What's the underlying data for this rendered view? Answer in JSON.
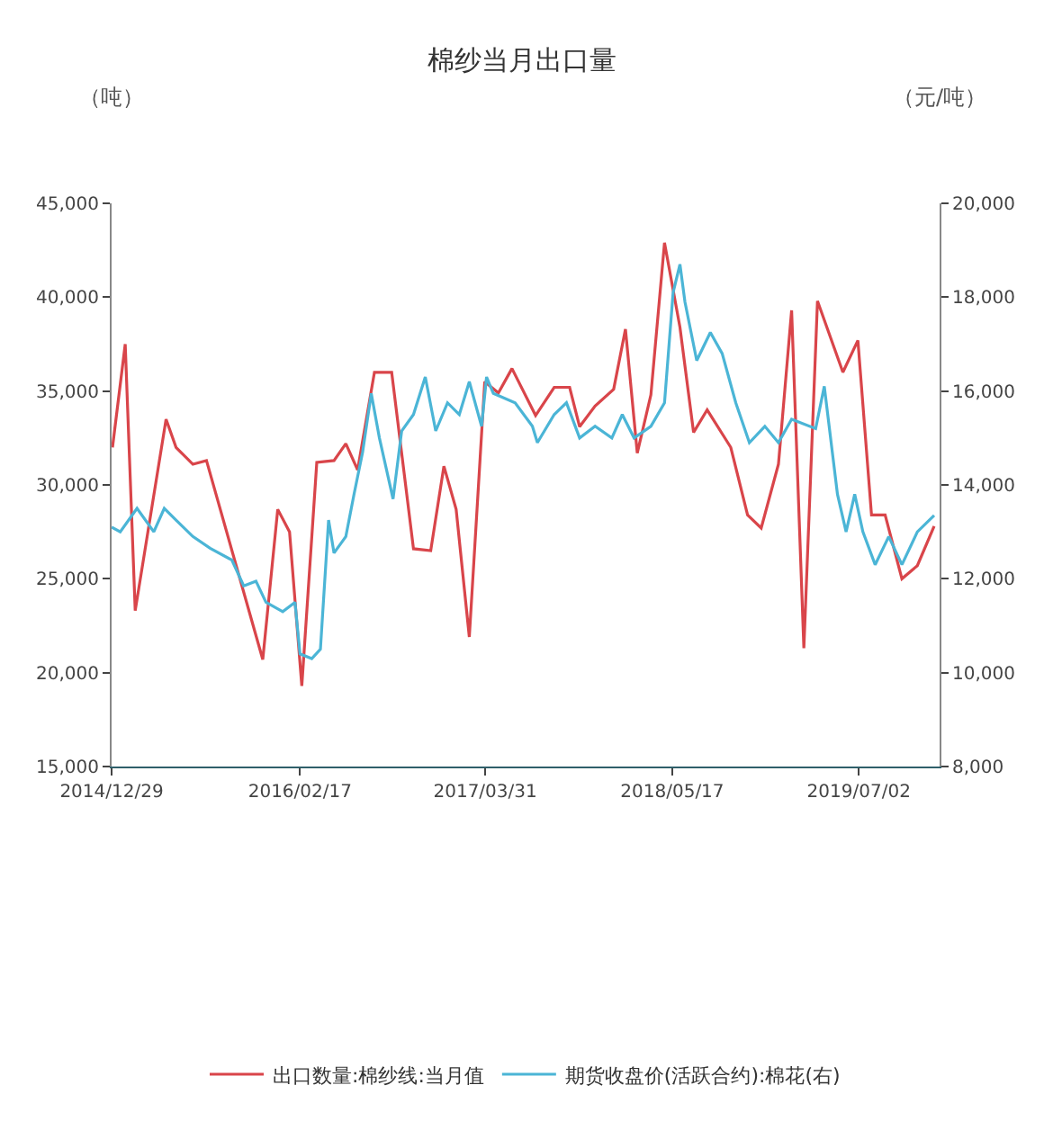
{
  "chart_data": {
    "type": "line",
    "title": "棉纱当月出口量",
    "ylabel": "（吨）",
    "y2label": "（元/吨）",
    "xlim": [
      "2014-12-29",
      "2019-12-27"
    ],
    "xticks": [
      {
        "value": "2014-12-29",
        "label": "2014/12/29"
      },
      {
        "value": "2016-02-17",
        "label": "2016/02/17"
      },
      {
        "value": "2017-03-31",
        "label": "2017/03/31"
      },
      {
        "value": "2018-05-17",
        "label": "2018/05/17"
      },
      {
        "value": "2019-07-02",
        "label": "2019/07/02"
      }
    ],
    "ylim": [
      15000,
      45000
    ],
    "yticks": [
      {
        "value": 15000,
        "label": "15,000"
      },
      {
        "value": 20000,
        "label": "20,000"
      },
      {
        "value": 25000,
        "label": "25,000"
      },
      {
        "value": 30000,
        "label": "30,000"
      },
      {
        "value": 35000,
        "label": "35,000"
      },
      {
        "value": 40000,
        "label": "40,000"
      },
      {
        "value": 45000,
        "label": "45,000"
      }
    ],
    "y2lim": [
      8000,
      20000
    ],
    "y2ticks": [
      {
        "value": 8000,
        "label": "8,000"
      },
      {
        "value": 10000,
        "label": "10,000"
      },
      {
        "value": 12000,
        "label": "12,000"
      },
      {
        "value": 14000,
        "label": "14,000"
      },
      {
        "value": 16000,
        "label": "16,000"
      },
      {
        "value": 18000,
        "label": "18,000"
      },
      {
        "value": 20000,
        "label": "20,000"
      }
    ],
    "legend": "bottom",
    "marker": "none",
    "line_style": "solid",
    "series": [
      {
        "name": "出口数量:棉纱线:当月值",
        "color": "#d9454a",
        "x": [
          "2014-12-31",
          "2015-01-28",
          "2015-02-19",
          "2015-04-28",
          "2015-05-20",
          "2015-06-26",
          "2015-07-26",
          "2015-11-27",
          "2015-12-30",
          "2016-01-25",
          "2016-02-21",
          "2016-03-25",
          "2016-05-02",
          "2016-05-28",
          "2016-06-23",
          "2016-07-30",
          "2016-09-06",
          "2016-10-24",
          "2016-12-01",
          "2016-12-30",
          "2017-01-26",
          "2017-02-24",
          "2017-03-30",
          "2017-04-29",
          "2017-05-29",
          "2017-07-20",
          "2017-08-30",
          "2017-10-03",
          "2017-10-25",
          "2017-11-28",
          "2018-01-08",
          "2018-02-03",
          "2018-03-01",
          "2018-03-31",
          "2018-04-30",
          "2018-06-03",
          "2018-07-03",
          "2018-08-02",
          "2018-09-23",
          "2018-10-30",
          "2018-11-29",
          "2019-01-06",
          "2019-02-04",
          "2019-03-03",
          "2019-04-02",
          "2019-05-28",
          "2019-06-30",
          "2019-07-30",
          "2019-08-29",
          "2019-10-05",
          "2019-11-08",
          "2019-12-15"
        ],
        "values": [
          32000,
          37500,
          23300,
          33500,
          32000,
          31100,
          31300,
          20700,
          28700,
          27500,
          19300,
          31200,
          31300,
          32200,
          30800,
          36000,
          36000,
          26600,
          26500,
          31000,
          28700,
          21900,
          35500,
          34900,
          36200,
          33700,
          35200,
          35200,
          33100,
          34200,
          35100,
          38300,
          31700,
          34800,
          42900,
          38400,
          32800,
          34000,
          32000,
          28400,
          27700,
          31100,
          39300,
          21300,
          39800,
          36000,
          37700,
          28400,
          28400,
          25000,
          25700,
          27800
        ]
      },
      {
        "name": "期货收盘价(活跃合约):棉花(右)",
        "color": "#4bb5d6",
        "axis": "y2",
        "x": [
          "2014-12-29",
          "2015-01-17",
          "2015-02-23",
          "2015-04-01",
          "2015-04-24",
          "2015-05-20",
          "2015-06-26",
          "2015-08-03",
          "2015-09-20",
          "2015-10-16",
          "2015-11-12",
          "2015-12-04",
          "2016-01-10",
          "2016-02-06",
          "2016-02-17",
          "2016-03-14",
          "2016-04-02",
          "2016-04-20",
          "2016-05-02",
          "2016-05-28",
          "2016-06-15",
          "2016-07-04",
          "2016-07-23",
          "2016-08-10",
          "2016-09-09",
          "2016-09-28",
          "2016-10-24",
          "2016-11-19",
          "2016-12-12",
          "2017-01-07",
          "2017-02-02",
          "2017-02-24",
          "2017-03-23",
          "2017-04-03",
          "2017-04-18",
          "2017-06-05",
          "2017-07-13",
          "2017-07-24",
          "2017-08-30",
          "2017-09-26",
          "2017-10-25",
          "2017-11-28",
          "2018-01-04",
          "2018-01-27",
          "2018-02-22",
          "2018-03-31",
          "2018-04-30",
          "2018-05-19",
          "2018-06-03",
          "2018-06-14",
          "2018-07-10",
          "2018-08-09",
          "2018-09-04",
          "2018-10-04",
          "2018-11-03",
          "2018-12-07",
          "2019-01-06",
          "2019-02-04",
          "2019-03-29",
          "2019-04-17",
          "2019-05-16",
          "2019-06-04",
          "2019-06-23",
          "2019-07-11",
          "2019-08-07",
          "2019-09-06",
          "2019-10-05",
          "2019-11-08",
          "2019-12-15"
        ],
        "values": [
          13100,
          13000,
          13500,
          13000,
          13500,
          13250,
          12900,
          12650,
          12400,
          11850,
          11950,
          11500,
          11300,
          11500,
          10400,
          10300,
          10500,
          13250,
          12550,
          12900,
          13800,
          14700,
          15950,
          15000,
          13700,
          15150,
          15500,
          16300,
          15150,
          15750,
          15500,
          16200,
          15250,
          16300,
          15950,
          15750,
          15250,
          14900,
          15500,
          15750,
          15000,
          15250,
          15000,
          15500,
          15000,
          15250,
          15750,
          18100,
          18700,
          17900,
          16650,
          17250,
          16800,
          15750,
          14900,
          15250,
          14900,
          15400,
          15200,
          16100,
          13800,
          13000,
          13800,
          13000,
          12300,
          12900,
          12300,
          13000,
          13350
        ]
      }
    ]
  }
}
